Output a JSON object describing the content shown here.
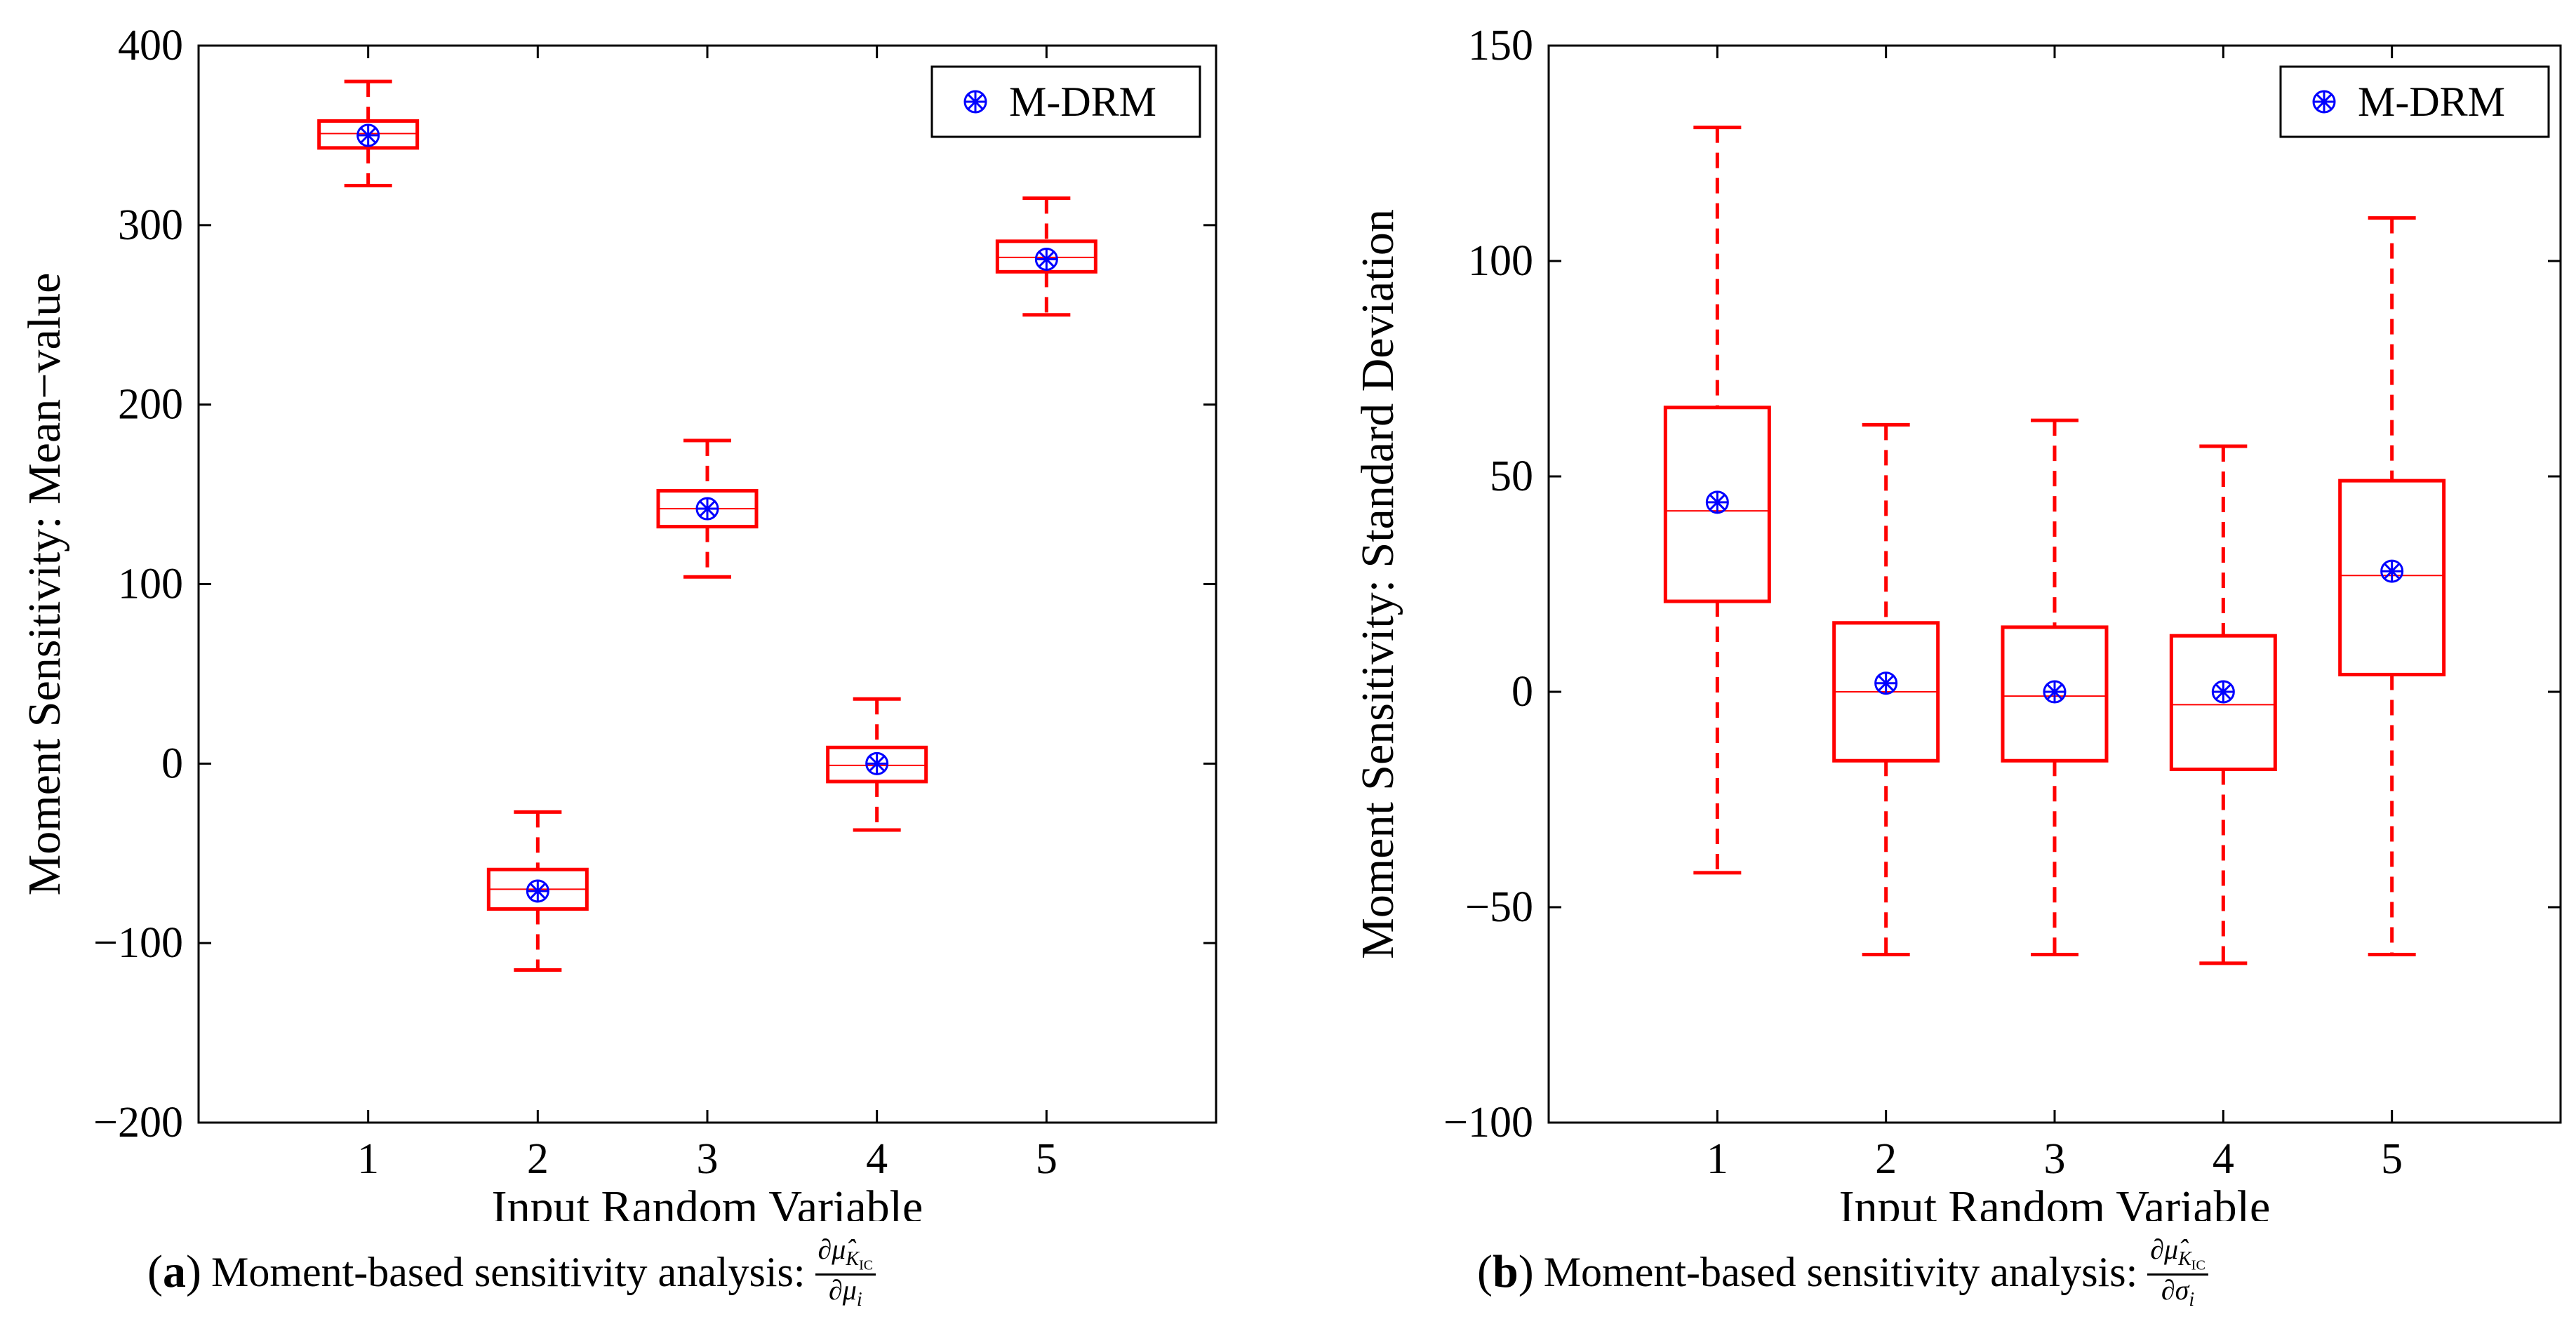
{
  "colors": {
    "box": "#ff0000",
    "marker": "#0000ff",
    "axis": "#000000"
  },
  "captions": [
    {
      "tag_open": "(",
      "tag_letter": "a",
      "tag_close": ")",
      "text": "Moment-based sensitivity analysis:",
      "frac_num": "∂μ̂K_IC",
      "frac_den": "∂μi"
    },
    {
      "tag_open": "(",
      "tag_letter": "b",
      "tag_close": ")",
      "text": "Moment-based sensitivity analysis:",
      "frac_num": "∂μ̂K_IC",
      "frac_den": "∂σi"
    }
  ],
  "chart_data": [
    {
      "type": "box",
      "xlabel": "Input Random Variable",
      "ylabel": "Moment Sensitivity: Mean−value",
      "ylim": [
        -200,
        400
      ],
      "yticks": [
        -200,
        -100,
        0,
        100,
        200,
        300,
        400
      ],
      "ytick_labels": [
        "−200",
        "−100",
        "0",
        "100",
        "200",
        "300",
        "400"
      ],
      "categories": [
        "1",
        "2",
        "3",
        "4",
        "5"
      ],
      "legend": {
        "label": "M-DRM",
        "position": "top-right"
      },
      "boxes": [
        {
          "whisker_low": 322,
          "q1": 343,
          "median": 351,
          "q3": 358,
          "whisker_high": 380
        },
        {
          "whisker_low": -115,
          "q1": -81,
          "median": -70,
          "q3": -59,
          "whisker_high": -27
        },
        {
          "whisker_low": 104,
          "q1": 132,
          "median": 142,
          "q3": 152,
          "whisker_high": 180
        },
        {
          "whisker_low": -37,
          "q1": -10,
          "median": -1,
          "q3": 9,
          "whisker_high": 36
        },
        {
          "whisker_low": 250,
          "q1": 274,
          "median": 282,
          "q3": 291,
          "whisker_high": 315
        }
      ],
      "mdrm": [
        350,
        -71,
        142,
        0,
        281
      ]
    },
    {
      "type": "box",
      "xlabel": "Input Random Variable",
      "ylabel": "Moment Sensitivity: Standard Deviation",
      "ylim": [
        -100,
        150
      ],
      "yticks": [
        -100,
        -50,
        0,
        50,
        100,
        150
      ],
      "ytick_labels": [
        "−100",
        "−50",
        "0",
        "50",
        "100",
        "150"
      ],
      "categories": [
        "1",
        "2",
        "3",
        "4",
        "5"
      ],
      "legend": {
        "label": "M-DRM",
        "position": "top-right"
      },
      "boxes": [
        {
          "whisker_low": -42,
          "q1": 21,
          "median": 42,
          "q3": 66,
          "whisker_high": 131
        },
        {
          "whisker_low": -61,
          "q1": -16,
          "median": 0,
          "q3": 16,
          "whisker_high": 62
        },
        {
          "whisker_low": -61,
          "q1": -16,
          "median": -1,
          "q3": 15,
          "whisker_high": 63
        },
        {
          "whisker_low": -63,
          "q1": -18,
          "median": -3,
          "q3": 13,
          "whisker_high": 57
        },
        {
          "whisker_low": -61,
          "q1": 4,
          "median": 27,
          "q3": 49,
          "whisker_high": 110
        }
      ],
      "mdrm": [
        44,
        2,
        0,
        0,
        28
      ]
    }
  ]
}
